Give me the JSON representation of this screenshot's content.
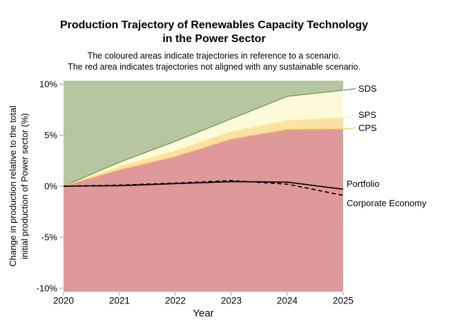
{
  "page": {
    "title": "Production Trajectory of Renewables Capacity Technology\nin the Power Sector",
    "subtitle": "The coloured areas indicate trajectories in reference to a scenario.\nThe red area indicates trajectories not aligned with any sustainable scenario."
  },
  "chart_data": {
    "type": "area",
    "title": "Production Trajectory of Renewables Capacity Technology in the Power Sector",
    "subtitle": "The coloured areas indicate trajectories in reference to a scenario. The red area indicates trajectories not aligned with any sustainable scenario.",
    "xlabel": "Year",
    "ylabel": "Change in production relative to the total\ninitial production of Power sector (%)",
    "x": [
      2020,
      2021,
      2022,
      2023,
      2024,
      2025
    ],
    "x_tick_labels": [
      "2020",
      "2021",
      "2022",
      "2023",
      "2024",
      "2025"
    ],
    "y_ticks": [
      {
        "value": 10,
        "label": "10%"
      },
      {
        "value": 5,
        "label": "5%"
      },
      {
        "value": 0,
        "label": "0%"
      },
      {
        "value": -5,
        "label": "-5%"
      },
      {
        "value": -10,
        "label": "-10%"
      }
    ],
    "ylim": [
      -10.34,
      10.34
    ],
    "grid": "off",
    "legend_position": "right-margin-labels",
    "scenario_boundaries": [
      {
        "name": "SDS",
        "label": "SDS",
        "values": [
          0,
          2.35,
          4.4,
          6.6,
          8.8,
          9.4
        ],
        "line_color": "#6e9b55"
      },
      {
        "name": "SPS",
        "label": "SPS",
        "values": [
          0,
          1.9,
          3.45,
          5.3,
          6.4,
          6.7
        ],
        "line_color": "#f0eb9e"
      },
      {
        "name": "CPS",
        "label": "CPS",
        "values": [
          0,
          1.6,
          2.9,
          4.6,
          5.55,
          5.6
        ],
        "line_color": "#f2c24d"
      }
    ],
    "regions": [
      {
        "name": "sds-region",
        "fill": "#b7c6a0",
        "between": [
          "top",
          "SDS"
        ]
      },
      {
        "name": "sps-region",
        "fill": "#fcfad8",
        "between": [
          "SDS",
          "SPS"
        ]
      },
      {
        "name": "cps-region",
        "fill": "#fbe2a2",
        "between": [
          "SPS",
          "CPS"
        ]
      },
      {
        "name": "not-aligned-region",
        "fill": "#e0999a",
        "between": [
          "CPS",
          "bottom"
        ]
      }
    ],
    "series": [
      {
        "name": "portfolio",
        "label": "Portfolio",
        "style": "solid",
        "color": "#000000",
        "values": [
          0,
          0.05,
          0.25,
          0.45,
          0.4,
          -0.3
        ]
      },
      {
        "name": "corporate-economy",
        "label": "Corporate Economy",
        "style": "dashed",
        "color": "#000000",
        "values": [
          0,
          0.1,
          0.3,
          0.55,
          0.2,
          -0.9
        ]
      }
    ],
    "tick_color": "#999999"
  }
}
